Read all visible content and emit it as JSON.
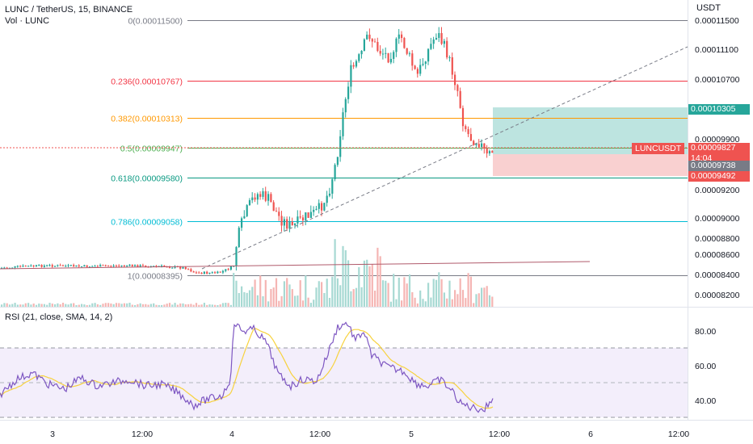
{
  "header": {
    "title": "LUNC / TetherUS, 15, BINANCE",
    "volume_label": "Vol · LUNC"
  },
  "price_axis": {
    "unit": "USDT",
    "ticks": [
      "0.00011500",
      "0.00011100",
      "0.00010700",
      "0.00009900",
      "0.00009200",
      "0.00009000",
      "0.00008800",
      "0.00008600",
      "0.00008400",
      "0.00008200"
    ]
  },
  "price_tags": {
    "target": "0.00010305",
    "symbol": "LUNCUSDT",
    "last_price": "0.00009827",
    "countdown": "14:04",
    "entry": "0.00009738",
    "stop": "0.00009492"
  },
  "fibonacci": [
    {
      "label": "0(0.00011500)",
      "value": 0.000115,
      "color": "#787b86"
    },
    {
      "label": "0.236(0.00010767)",
      "value": 0.00010767,
      "color": "#f23645"
    },
    {
      "label": "0.382(0.00010313)",
      "value": 0.00010313,
      "color": "#ff9800"
    },
    {
      "label": "0.5(0.00009947)",
      "value": 9.947e-05,
      "color": "#4caf50"
    },
    {
      "label": "0.618(0.00009580)",
      "value": 9.58e-05,
      "color": "#089981"
    },
    {
      "label": "0.786(0.00009058)",
      "value": 9.058e-05,
      "color": "#00bcd4"
    },
    {
      "label": "1(0.00008395)",
      "value": 8.395e-05,
      "color": "#787b86"
    }
  ],
  "rsi": {
    "label": "RSI (21, close, SMA, 14, 2)",
    "ticks": [
      "80.00",
      "60.00",
      "40.00"
    ],
    "upper_band": 70,
    "lower_band": 30,
    "mid_band": 50
  },
  "time_axis": {
    "ticks": [
      "3",
      "12:00",
      "4",
      "12:00",
      "5",
      "12:00",
      "6",
      "12:00"
    ]
  },
  "colors": {
    "up": "#26a69a",
    "down": "#ef5350",
    "rsi_line": "#7e57c2",
    "rsi_ma": "#f7d23e",
    "profit_zone": "#b2dfdb",
    "loss_zone": "#f8c8c8"
  }
}
